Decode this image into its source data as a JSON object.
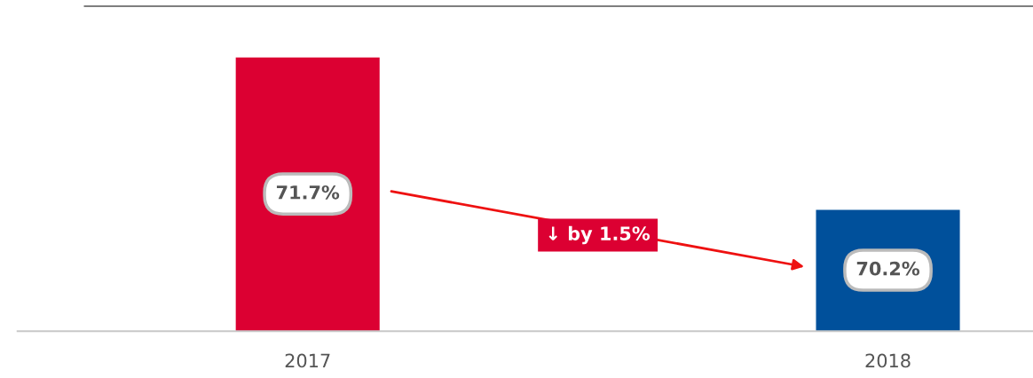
{
  "chart_data": {
    "type": "bar",
    "categories": [
      "2017",
      "2018"
    ],
    "values": [
      71.7,
      70.2
    ],
    "value_labels": [
      "71.7%",
      "70.2%"
    ],
    "colors": [
      "#dc0032",
      "#00509b"
    ],
    "ylim": [
      69.0,
      72.2
    ],
    "tick_labels": "x",
    "grid": false,
    "legend": false,
    "annotations": [
      "↓ by 1.5%"
    ]
  }
}
